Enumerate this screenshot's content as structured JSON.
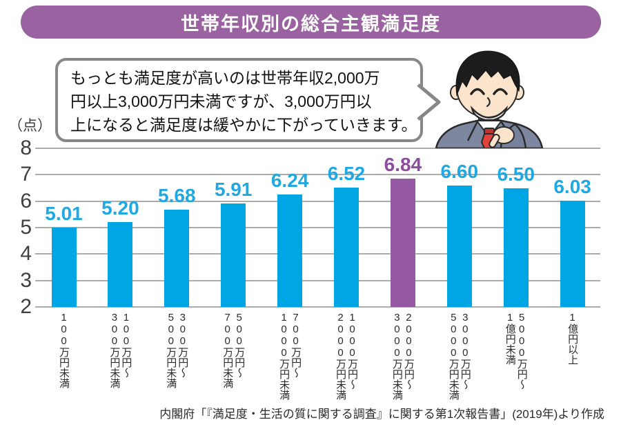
{
  "title": {
    "text": "世帯年収別の総合主観満足度",
    "bg": "#9A62A1"
  },
  "speech_bubble": {
    "lines": [
      "もっとも満足度が高いのは世帯年収2,000万",
      "円以上3,000万円未満ですが、3,000万円以",
      "上になると満足度は緩やかに下がっていきます。"
    ]
  },
  "source": {
    "text": "内閣府「『満足度・生活の質に関する調査』に関する第1次報告書」(2019年)より作成"
  },
  "chart_data": {
    "type": "bar",
    "title": "世帯年収別の総合主観満足度",
    "ylabel": "（点）",
    "ylim": [
      2,
      8
    ],
    "yticks": [
      8,
      7,
      6,
      5,
      4,
      3,
      2
    ],
    "grid": true,
    "legend": false,
    "categories": [
      "100万円未満",
      "100万円〜300万円未満",
      "300万円〜500万円未満",
      "500万円〜700万円未満",
      "700万円〜1000万円未満",
      "1000万円〜2000万円未満",
      "2000万円〜3000万円未満",
      "3000万円〜5000万円未満",
      "5000万円〜1億円未満",
      "1億円以上"
    ],
    "category_lines": [
      [
        "100万円未満"
      ],
      [
        "100万円〜",
        "300万円未満"
      ],
      [
        "300万円〜",
        "500万円未満"
      ],
      [
        "500万円〜",
        "700万円未満"
      ],
      [
        "700万円〜",
        "1000万円未満"
      ],
      [
        "1000万円〜",
        "2000万円未満"
      ],
      [
        "2000万円〜",
        "3000万円未満"
      ],
      [
        "3000万円〜",
        "5000万円未満"
      ],
      [
        "5000万円〜",
        "1億円未満"
      ],
      [
        "1億円以上"
      ]
    ],
    "values": [
      5.01,
      5.2,
      5.68,
      5.91,
      6.24,
      6.52,
      6.84,
      6.6,
      6.5,
      6.03
    ],
    "value_labels": [
      "5.01",
      "5.20",
      "5.68",
      "5.91",
      "6.24",
      "6.52",
      "6.84",
      "6.60",
      "6.50",
      "6.03"
    ],
    "highlight_index": 6,
    "bar_color": "#00A6E3",
    "bar_label_color": "#1FA8E2",
    "highlight_color": "#9559A4",
    "highlight_label_color": "#8D4C9D",
    "gridline_color": "#ABABAB"
  }
}
